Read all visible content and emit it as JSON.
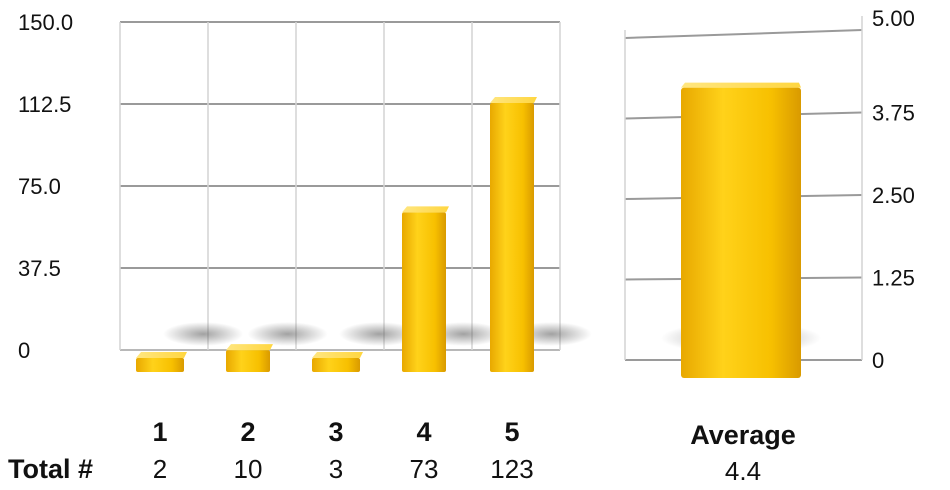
{
  "chart_data": [
    {
      "type": "bar",
      "categories": [
        "1",
        "2",
        "3",
        "4",
        "5"
      ],
      "values": [
        2,
        10,
        3,
        73,
        123
      ],
      "ylim": [
        0,
        150
      ],
      "yticks": [
        "0",
        "37.5",
        "75.0",
        "112.5",
        "150.0"
      ],
      "ytick_values": [
        0,
        37.5,
        75,
        112.5,
        150
      ],
      "row_label": "Total #",
      "grid": true,
      "bar_color": "#f5c20a"
    },
    {
      "type": "bar",
      "categories": [
        "Average"
      ],
      "values": [
        4.4
      ],
      "ylim": [
        0,
        5
      ],
      "yticks": [
        "0",
        "1.25",
        "2.50",
        "3.75",
        "5.00"
      ],
      "ytick_values": [
        0,
        1.25,
        2.5,
        3.75,
        5
      ],
      "grid": true,
      "bar_color": "#f5c20a"
    }
  ]
}
